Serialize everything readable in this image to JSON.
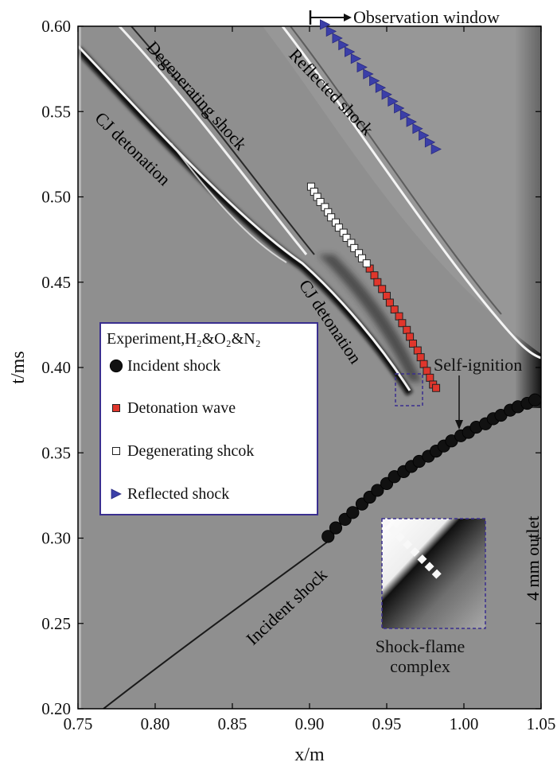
{
  "chart_data": {
    "type": "scatter",
    "xlabel": "x/m",
    "ylabel": "t/ms",
    "xlim": [
      0.75,
      1.05
    ],
    "ylim": [
      0.2,
      0.6
    ],
    "x_ticks": [
      "0.75",
      "0.80",
      "0.85",
      "0.90",
      "0.95",
      "1.00",
      "1.05"
    ],
    "y_ticks": [
      "0.20",
      "0.25",
      "0.30",
      "0.35",
      "0.40",
      "0.45",
      "0.50",
      "0.55",
      "0.60"
    ],
    "background": "schlieren",
    "legend": {
      "title": "Experiment,H₂&O₂&N₂",
      "placement": "center-left",
      "border_color": "#3a2f8f"
    },
    "series": [
      {
        "name": "Incident shock",
        "marker": "circle",
        "color": "#111111",
        "x": [
          0.912,
          0.917,
          0.923,
          0.928,
          0.934,
          0.939,
          0.944,
          0.95,
          0.955,
          0.961,
          0.966,
          0.971,
          0.977,
          0.982,
          0.987,
          0.992,
          0.998,
          1.003,
          1.008,
          1.014,
          1.019,
          1.024,
          1.03,
          1.035,
          1.041,
          1.046
        ],
        "y": [
          0.301,
          0.306,
          0.311,
          0.315,
          0.32,
          0.324,
          0.328,
          0.332,
          0.336,
          0.339,
          0.342,
          0.345,
          0.348,
          0.351,
          0.354,
          0.357,
          0.36,
          0.362,
          0.365,
          0.367,
          0.37,
          0.372,
          0.375,
          0.377,
          0.379,
          0.381
        ]
      },
      {
        "name": "Detonation wave",
        "marker": "square",
        "color": "#e0362c",
        "x": [
          0.939,
          0.942,
          0.944,
          0.947,
          0.95,
          0.952,
          0.955,
          0.958,
          0.96,
          0.963,
          0.965,
          0.967,
          0.97,
          0.972,
          0.974,
          0.976,
          0.978,
          0.98,
          0.982
        ],
        "y": [
          0.458,
          0.454,
          0.45,
          0.446,
          0.442,
          0.438,
          0.434,
          0.43,
          0.426,
          0.422,
          0.418,
          0.414,
          0.41,
          0.406,
          0.402,
          0.398,
          0.394,
          0.39,
          0.388
        ]
      },
      {
        "name": "Degenerating shcok",
        "marker": "square",
        "color": "#ffffff",
        "x": [
          0.901,
          0.903,
          0.905,
          0.907,
          0.91,
          0.912,
          0.914,
          0.917,
          0.919,
          0.922,
          0.924,
          0.927,
          0.929,
          0.932,
          0.934,
          0.937
        ],
        "y": [
          0.506,
          0.503,
          0.5,
          0.497,
          0.494,
          0.491,
          0.488,
          0.485,
          0.482,
          0.479,
          0.476,
          0.473,
          0.47,
          0.467,
          0.464,
          0.461
        ]
      },
      {
        "name": "Reflected shock",
        "marker": "triangle-right",
        "color": "#3b3fa8",
        "x": [
          0.91,
          0.914,
          0.918,
          0.922,
          0.926,
          0.93,
          0.934,
          0.938,
          0.942,
          0.946,
          0.95,
          0.954,
          0.958,
          0.962,
          0.966,
          0.97,
          0.974,
          0.978,
          0.982
        ],
        "y": [
          0.601,
          0.597,
          0.593,
          0.589,
          0.585,
          0.581,
          0.576,
          0.572,
          0.568,
          0.564,
          0.56,
          0.556,
          0.552,
          0.548,
          0.544,
          0.54,
          0.536,
          0.532,
          0.528
        ]
      }
    ],
    "annotations": [
      {
        "text": "Observation window"
      },
      {
        "text": "CJ detonation"
      },
      {
        "text": "Degenerating shock"
      },
      {
        "text": "Reflected shock"
      },
      {
        "text": "CJ detonation"
      },
      {
        "text": "Self-ignition"
      },
      {
        "text": "Incident shock"
      },
      {
        "text": "4 mm outlet"
      },
      {
        "text": "Shock-flame"
      },
      {
        "text": "complex"
      }
    ]
  }
}
